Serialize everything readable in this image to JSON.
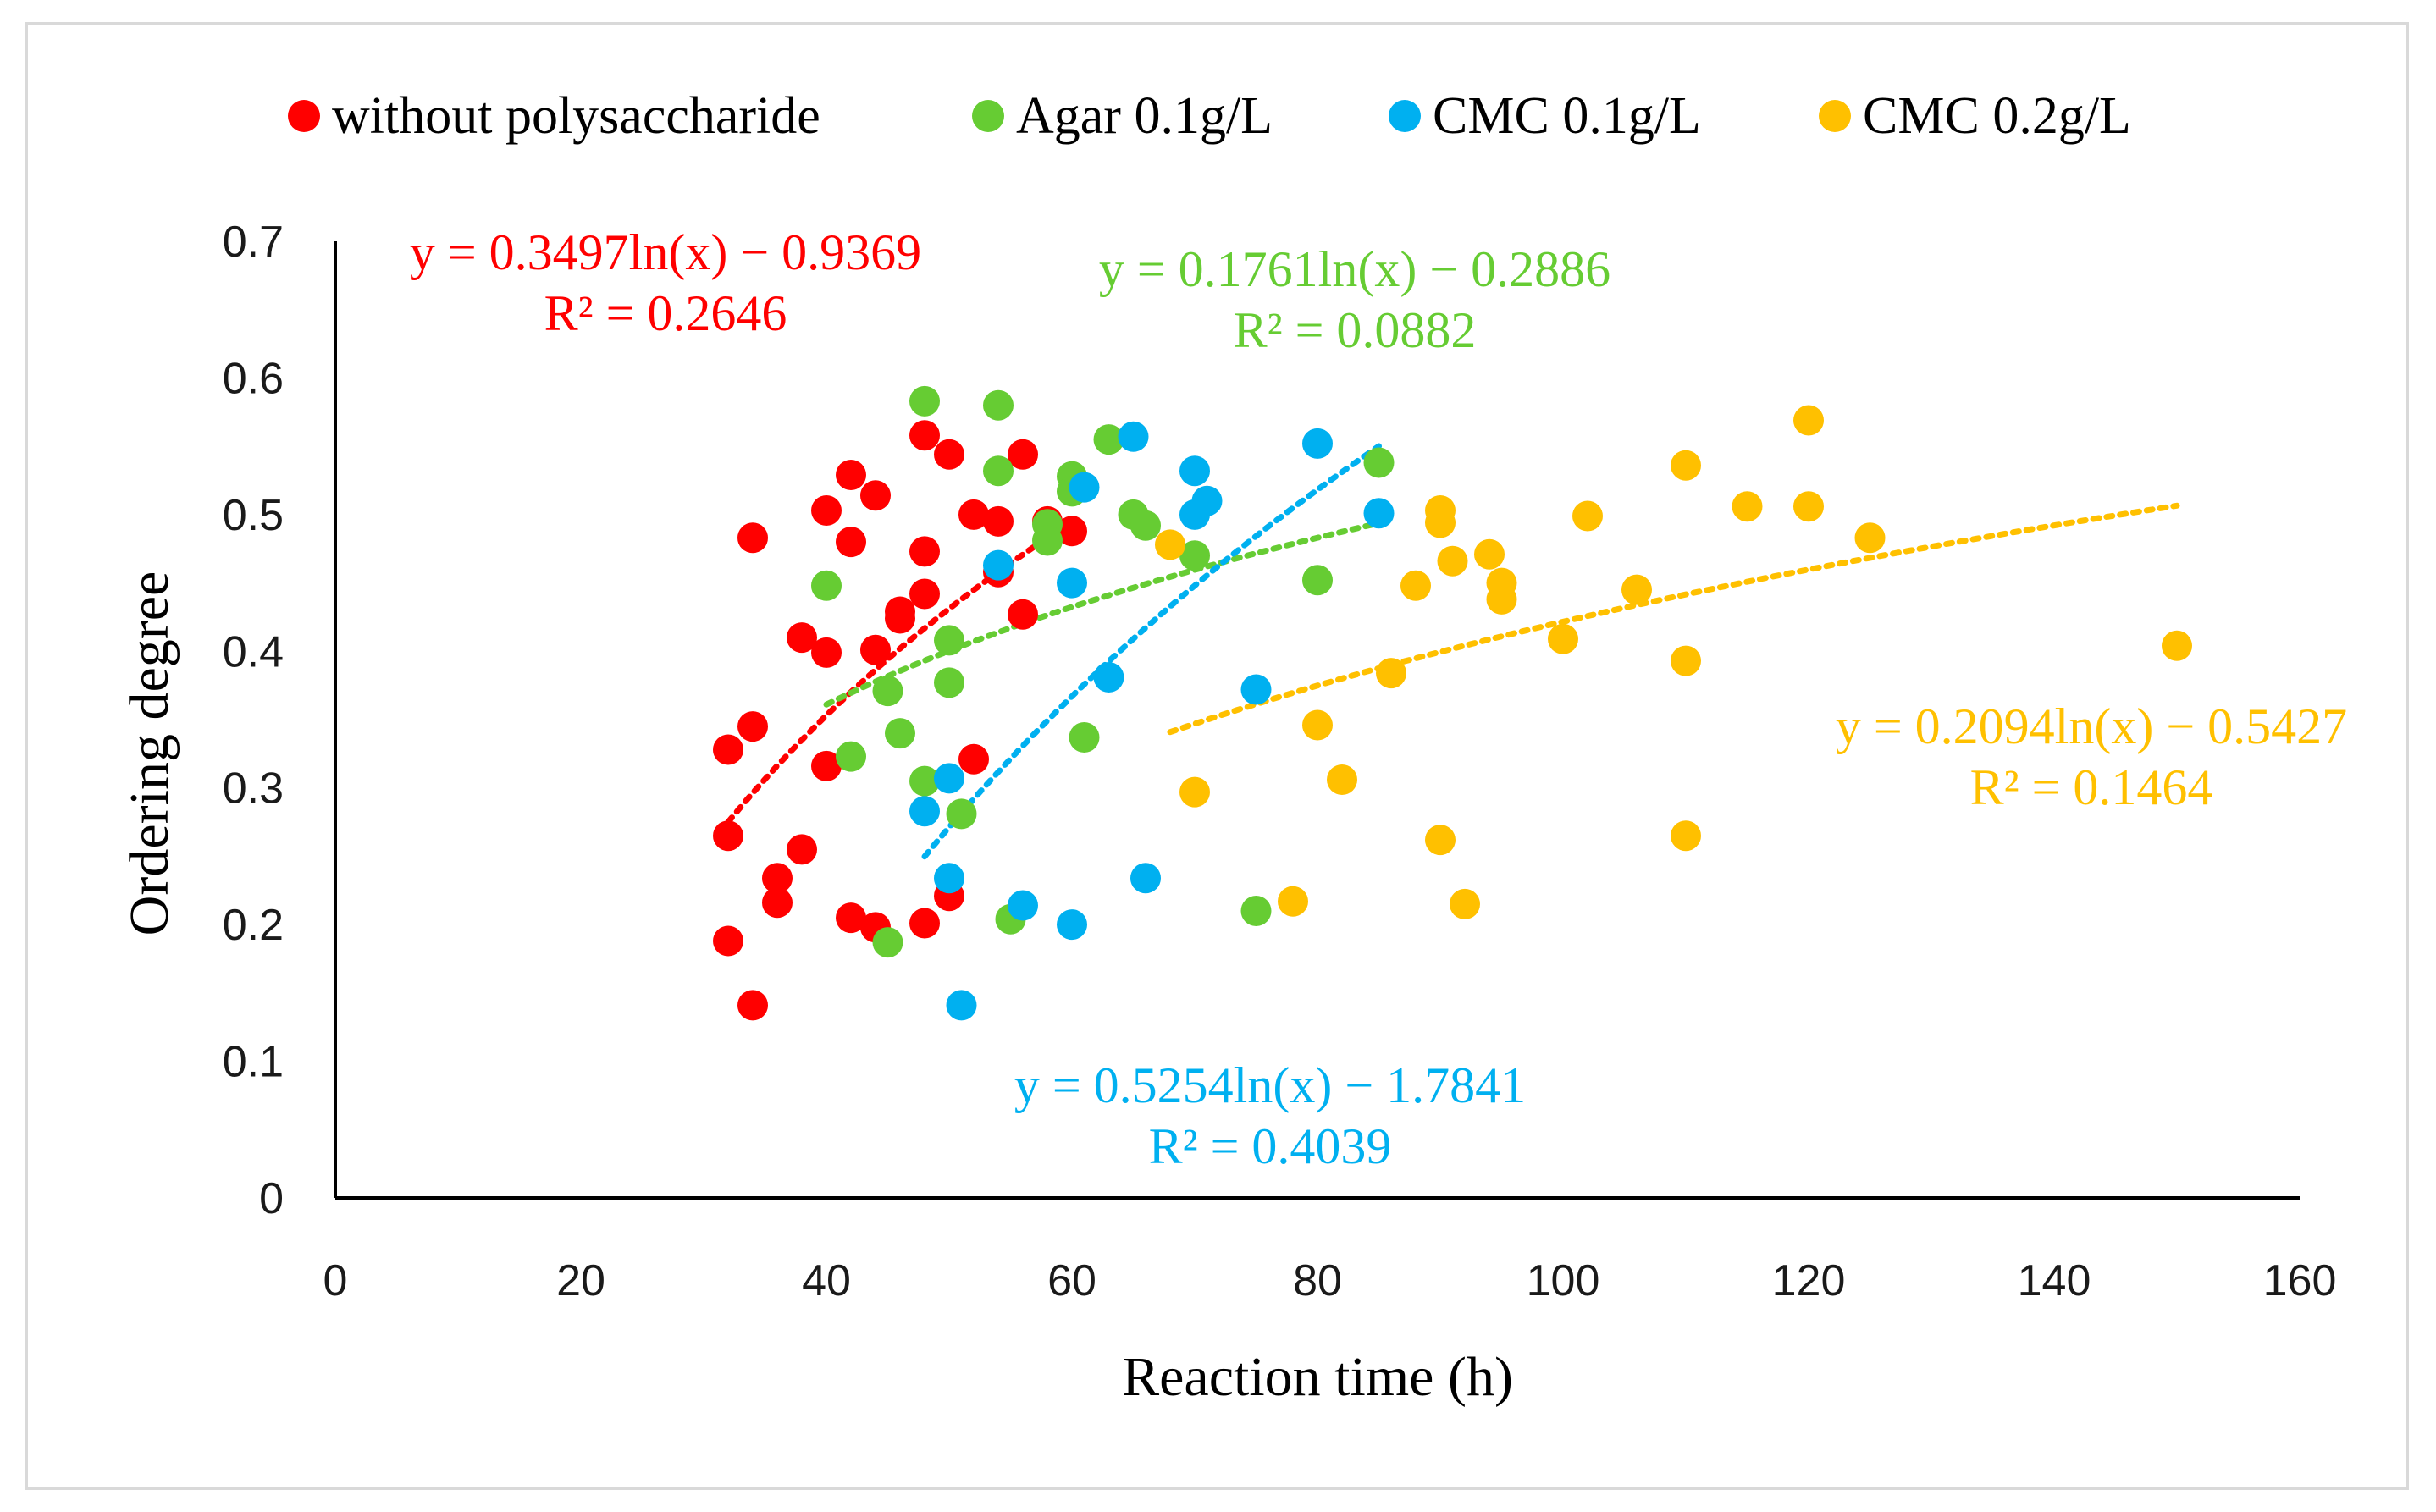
{
  "chart_data": {
    "type": "scatter",
    "title": "",
    "xlabel": "Reaction time (h)",
    "ylabel": "Ordering degree",
    "xlim": [
      0,
      160
    ],
    "ylim": [
      0,
      0.7
    ],
    "xticks": [
      "0",
      "20",
      "40",
      "60",
      "80",
      "100",
      "120",
      "140",
      "160"
    ],
    "yticks": [
      "0",
      "0.1",
      "0.2",
      "0.3",
      "0.4",
      "0.5",
      "0.6",
      "0.7"
    ],
    "grid": false,
    "legend_position": "top",
    "series": [
      {
        "name": "without polysaccharide",
        "color": "#ff0000",
        "trend": {
          "equation": "y = 0.3497ln(x)  − 0.9369",
          "r2": "R² = 0.2646",
          "a": 0.3497,
          "b": -0.9369,
          "x_range": [
            32,
            58
          ]
        },
        "points": [
          [
            32,
            0.265
          ],
          [
            32,
            0.328
          ],
          [
            32,
            0.188
          ],
          [
            34,
            0.483
          ],
          [
            34,
            0.345
          ],
          [
            34,
            0.141
          ],
          [
            36,
            0.234
          ],
          [
            36,
            0.216
          ],
          [
            38,
            0.41
          ],
          [
            38,
            0.255
          ],
          [
            40,
            0.503
          ],
          [
            40,
            0.399
          ],
          [
            40,
            0.316
          ],
          [
            42,
            0.529
          ],
          [
            42,
            0.48
          ],
          [
            42,
            0.205
          ],
          [
            44,
            0.514
          ],
          [
            44,
            0.401
          ],
          [
            44,
            0.198
          ],
          [
            46,
            0.429
          ],
          [
            46,
            0.424
          ],
          [
            48,
            0.558
          ],
          [
            48,
            0.473
          ],
          [
            48,
            0.442
          ],
          [
            48,
            0.201
          ],
          [
            50,
            0.544
          ],
          [
            50,
            0.221
          ],
          [
            52,
            0.5
          ],
          [
            52,
            0.321
          ],
          [
            54,
            0.495
          ],
          [
            54,
            0.458
          ],
          [
            56,
            0.544
          ],
          [
            56,
            0.427
          ],
          [
            58,
            0.495
          ],
          [
            60,
            0.488
          ]
        ]
      },
      {
        "name": "Agar 0.1g/L",
        "color": "#66cc33",
        "trend": {
          "equation": "y = 0.1761ln(x)  − 0.2886",
          "r2": "R² = 0.0882",
          "a": 0.1761,
          "b": -0.2886,
          "x_range": [
            40,
            85
          ]
        },
        "points": [
          [
            40,
            0.448
          ],
          [
            42,
            0.323
          ],
          [
            45,
            0.371
          ],
          [
            46,
            0.34
          ],
          [
            48,
            0.583
          ],
          [
            48,
            0.305
          ],
          [
            50,
            0.408
          ],
          [
            50,
            0.377
          ],
          [
            51,
            0.281
          ],
          [
            54,
            0.58
          ],
          [
            54,
            0.532
          ],
          [
            45,
            0.187
          ],
          [
            55,
            0.204
          ],
          [
            58,
            0.493
          ],
          [
            58,
            0.481
          ],
          [
            60,
            0.528
          ],
          [
            60,
            0.517
          ],
          [
            61,
            0.337
          ],
          [
            63,
            0.555
          ],
          [
            65,
            0.5
          ],
          [
            66,
            0.492
          ],
          [
            70,
            0.47
          ],
          [
            75,
            0.21
          ],
          [
            80,
            0.452
          ],
          [
            85,
            0.538
          ]
        ]
      },
      {
        "name": "CMC 0.1g/L",
        "color": "#00b0f0",
        "trend": {
          "equation": "y = 0.5254ln(x)  − 1.7841",
          "r2": "R² = 0.4039",
          "a": 0.5254,
          "b": -1.7841,
          "x_range": [
            48,
            85
          ]
        },
        "points": [
          [
            48,
            0.283
          ],
          [
            50,
            0.307
          ],
          [
            50,
            0.234
          ],
          [
            51,
            0.141
          ],
          [
            54,
            0.463
          ],
          [
            56,
            0.214
          ],
          [
            60,
            0.45
          ],
          [
            60,
            0.2
          ],
          [
            61,
            0.52
          ],
          [
            63,
            0.381
          ],
          [
            65,
            0.557
          ],
          [
            66,
            0.234
          ],
          [
            70,
            0.532
          ],
          [
            70,
            0.5
          ],
          [
            71,
            0.51
          ],
          [
            75,
            0.372
          ],
          [
            80,
            0.552
          ],
          [
            85,
            0.501
          ]
        ]
      },
      {
        "name": "CMC 0.2g/L",
        "color": "#ffc000",
        "trend": {
          "equation": "y = 0.2094ln(x)  − 0.5427",
          "r2": "R² = 0.1464",
          "a": 0.2094,
          "b": -0.5427,
          "x_range": [
            68,
            150
          ]
        },
        "points": [
          [
            68,
            0.478
          ],
          [
            70,
            0.297
          ],
          [
            78,
            0.217
          ],
          [
            80,
            0.346
          ],
          [
            82,
            0.306
          ],
          [
            86,
            0.384
          ],
          [
            88,
            0.448
          ],
          [
            90,
            0.503
          ],
          [
            90,
            0.494
          ],
          [
            90,
            0.262
          ],
          [
            91,
            0.466
          ],
          [
            92,
            0.215
          ],
          [
            94,
            0.471
          ],
          [
            95,
            0.45
          ],
          [
            95,
            0.438
          ],
          [
            100,
            0.409
          ],
          [
            102,
            0.499
          ],
          [
            106,
            0.445
          ],
          [
            110,
            0.536
          ],
          [
            110,
            0.393
          ],
          [
            110,
            0.265
          ],
          [
            115,
            0.506
          ],
          [
            120,
            0.569
          ],
          [
            120,
            0.506
          ],
          [
            125,
            0.483
          ],
          [
            150,
            0.404
          ]
        ]
      }
    ]
  }
}
